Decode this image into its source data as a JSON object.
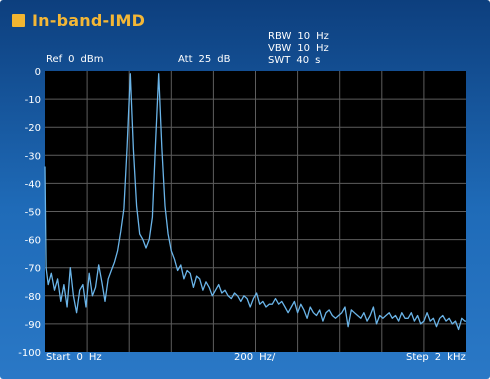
{
  "title": "In-band-IMD",
  "colors": {
    "background_top": "#0d3f7e",
    "background_bottom": "#2a78c6",
    "title": "#f4b736",
    "plot_bg": "#000000",
    "grid": "#5d5d5d",
    "trace": "#6ab4e8"
  },
  "header": {
    "ref_label": "Ref",
    "ref_value": "0",
    "ref_unit": "dBm",
    "att_label": "Att",
    "att_value": "25",
    "att_unit": "dB",
    "rbw_label": "RBW",
    "rbw_value": "10",
    "rbw_unit": "Hz",
    "vbw_label": "VBW",
    "vbw_value": "10",
    "vbw_unit": "Hz",
    "swt_label": "SWT",
    "swt_value": "40",
    "swt_unit": "s"
  },
  "footer": {
    "start_label": "Start",
    "start_value": "0",
    "start_unit": "Hz",
    "div_value": "200",
    "div_unit": "Hz/",
    "step_label": "Step",
    "step_value": "2",
    "step_unit": "kHz"
  },
  "chart_data": {
    "type": "line",
    "x_unit": "Hz",
    "y_unit": "dBm",
    "xlim": [
      0,
      2000
    ],
    "ylim": [
      -100,
      0
    ],
    "y_ticks": [
      "0",
      "-10",
      "-20",
      "-30",
      "-40",
      "-50",
      "-60",
      "-70",
      "-80",
      "-90",
      "-100"
    ],
    "x_divisions": 10,
    "grid": true,
    "series": [
      {
        "x": [
          0,
          5,
          15,
          30,
          45,
          60,
          75,
          90,
          105,
          120,
          135,
          150,
          165,
          180,
          195,
          210,
          225,
          240,
          255,
          270,
          285,
          300,
          315,
          330,
          345,
          360,
          375,
          390,
          405,
          420,
          435,
          450,
          465,
          480,
          495,
          510,
          525,
          540,
          555,
          570,
          585,
          600,
          615,
          630,
          645,
          660,
          675,
          690,
          705,
          720,
          735,
          750,
          765,
          780,
          795,
          810,
          825,
          840,
          855,
          870,
          885,
          900,
          915,
          930,
          945,
          960,
          975,
          990,
          1005,
          1020,
          1035,
          1050,
          1065,
          1080,
          1095,
          1110,
          1125,
          1140,
          1155,
          1170,
          1185,
          1200,
          1215,
          1230,
          1245,
          1260,
          1275,
          1290,
          1305,
          1320,
          1335,
          1350,
          1365,
          1380,
          1395,
          1410,
          1425,
          1440,
          1455,
          1470,
          1485,
          1500,
          1515,
          1530,
          1545,
          1560,
          1575,
          1590,
          1605,
          1620,
          1635,
          1650,
          1665,
          1680,
          1695,
          1710,
          1725,
          1740,
          1755,
          1770,
          1785,
          1800,
          1815,
          1830,
          1845,
          1860,
          1875,
          1890,
          1905,
          1920,
          1935,
          1950,
          1965,
          1980,
          1995,
          2000
        ],
        "y": [
          -34,
          -70,
          -76,
          -72,
          -78,
          -74,
          -82,
          -76,
          -84,
          -70,
          -80,
          -86,
          -78,
          -76,
          -84,
          -72,
          -80,
          -77,
          -69,
          -75,
          -82,
          -74,
          -71,
          -68,
          -64,
          -57,
          -49,
          -27,
          -1,
          -28,
          -48,
          -58,
          -60,
          -63,
          -60,
          -52,
          -26,
          -1,
          -27,
          -48,
          -58,
          -64,
          -67,
          -71,
          -69,
          -74,
          -71,
          -72,
          -77,
          -73,
          -74,
          -78,
          -75,
          -77,
          -80,
          -78,
          -76,
          -79,
          -78,
          -80,
          -81,
          -79,
          -80,
          -82,
          -80,
          -81,
          -84,
          -81,
          -79,
          -83,
          -82,
          -84,
          -83,
          -83,
          -81,
          -83,
          -82,
          -84,
          -86,
          -84,
          -82,
          -86,
          -83,
          -85,
          -88,
          -84,
          -86,
          -87,
          -85,
          -89,
          -86,
          -85,
          -87,
          -88,
          -87,
          -86,
          -84,
          -91,
          -85,
          -86,
          -87,
          -88,
          -86,
          -89,
          -87,
          -84,
          -90,
          -87,
          -88,
          -87,
          -86,
          -88,
          -87,
          -89,
          -86,
          -88,
          -88,
          -86,
          -89,
          -87,
          -90,
          -89,
          -86,
          -89,
          -88,
          -91,
          -88,
          -87,
          -89,
          -88,
          -90,
          -89,
          -92,
          -88,
          -89,
          -89
        ]
      }
    ]
  }
}
